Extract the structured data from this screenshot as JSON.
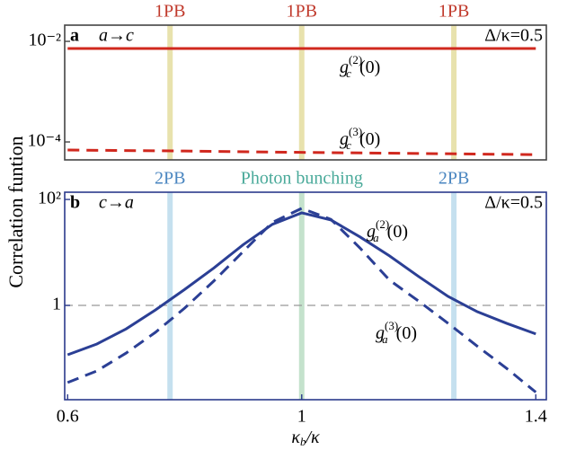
{
  "chart_data": [
    {
      "type": "line",
      "panel": "a",
      "mapping": "a→c",
      "parameter": "Δ/κ=0.5",
      "ylabel": "Correlation funtion",
      "log_y": true,
      "frame_color": "#444444",
      "xlim": [
        0.595,
        1.418
      ],
      "ylim": [
        4.4e-05,
        0.021
      ],
      "yticks": [
        {
          "value": 0.01,
          "label": "10⁻²"
        },
        {
          "value": 0.0001,
          "label": "10⁻⁴"
        }
      ],
      "bands": [
        {
          "x": 0.775,
          "label": "1PB",
          "color": "#e8e2ad",
          "label_color": "#c0392b"
        },
        {
          "x": 1.0,
          "label": "1PB",
          "color": "#e8e2ad",
          "label_color": "#c0392b"
        },
        {
          "x": 1.26,
          "label": "1PB",
          "color": "#e8e2ad",
          "label_color": "#c0392b"
        }
      ],
      "x": [
        0.6,
        0.8,
        1.0,
        1.2,
        1.4
      ],
      "series": [
        {
          "color": "#d0281e",
          "dash": false,
          "values": [
            0.0072,
            0.0072,
            0.0072,
            0.0072,
            0.0072
          ],
          "label": {
            "base": "g",
            "sub": "c",
            "sup": "(2)",
            "arg": "(0)"
          }
        },
        {
          "color": "#d0281e",
          "dash": true,
          "values": [
            6.9e-05,
            6.6e-05,
            6.2e-05,
            5.9e-05,
            5.6e-05
          ],
          "label": {
            "base": "g",
            "sub": "c",
            "sup": "(3)",
            "arg": "(0)"
          }
        }
      ]
    },
    {
      "type": "line",
      "panel": "b",
      "mapping": "c→a",
      "parameter": "Δ/κ=0.5",
      "xlabel": {
        "base": "κ",
        "sub": "b",
        "rest": "/κ"
      },
      "log_y": true,
      "frame_color": "#2b3a8c",
      "xlim": [
        0.595,
        1.418
      ],
      "ylim": [
        0.0166,
        137
      ],
      "xticks": [
        0.6,
        1,
        1.4
      ],
      "yticks": [
        {
          "value": 100,
          "label": "10²"
        },
        1
      ],
      "hline": 1,
      "bands": [
        {
          "x": 0.775,
          "label": "2PB",
          "color": "#c5e0ef",
          "label_color": "#4a86c0"
        },
        {
          "x": 1.0,
          "label": "Photon bunching",
          "color": "#c4e2cc",
          "label_color": "#4aaa9a"
        },
        {
          "x": 1.26,
          "label": "2PB",
          "color": "#c5e0ef",
          "label_color": "#4a86c0"
        }
      ],
      "x": [
        0.6,
        0.65,
        0.7,
        0.75,
        0.8,
        0.85,
        0.9,
        0.95,
        1.0,
        1.05,
        1.1,
        1.15,
        1.2,
        1.25,
        1.3,
        1.35,
        1.4
      ],
      "series": [
        {
          "color": "#2b3f95",
          "dash": false,
          "values": [
            0.117,
            0.187,
            0.36,
            0.82,
            2.0,
            5.1,
            14,
            34,
            56,
            41,
            19.5,
            8.6,
            3.5,
            1.48,
            0.76,
            0.46,
            0.29
          ],
          "label": {
            "base": "g",
            "sub": "a",
            "sup": "(2)",
            "arg": "(0)"
          }
        },
        {
          "color": "#2b3f95",
          "dash": true,
          "values": [
            0.035,
            0.058,
            0.126,
            0.31,
            0.89,
            2.9,
            10.4,
            37,
            68,
            42,
            12,
            3.0,
            1.2,
            0.46,
            0.17,
            0.065,
            0.023
          ],
          "label": {
            "base": "g",
            "sub": "a",
            "sup": "(3)",
            "arg": "(0)"
          }
        }
      ]
    }
  ]
}
